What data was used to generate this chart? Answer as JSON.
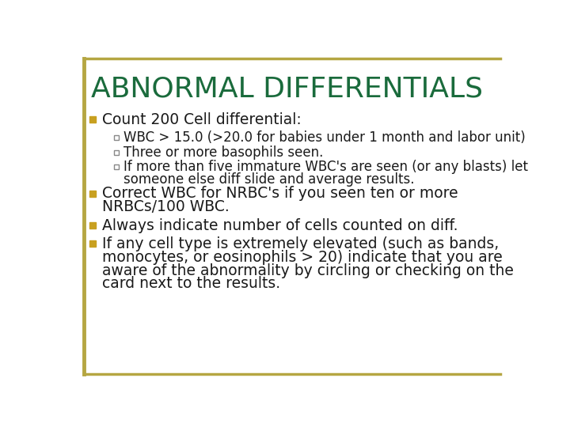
{
  "title": "ABNORMAL DIFFERENTIALS",
  "title_color": "#1a6b3c",
  "background_color": "#ffffff",
  "border_color": "#b5a642",
  "bullet1_color": "#c8a020",
  "bullet2_color": "#b8c8a0",
  "text_color": "#1a1a1a",
  "bullet_items": [
    {
      "level": 1,
      "text": "Count 200 Cell differential:"
    },
    {
      "level": 2,
      "text": "WBC > 15.0 (>20.0 for babies under 1 month and labor unit)"
    },
    {
      "level": 2,
      "text": "Three or more basophils seen."
    },
    {
      "level": 2,
      "text": "If more than five immature WBC's are seen (or any blasts) let\nsomeone else diff slide and average results."
    },
    {
      "level": 1,
      "text": "Correct WBC for NRBC's if you seen ten or more\nNRBCs/100 WBC."
    },
    {
      "level": 1,
      "text": "Always indicate number of cells counted on diff."
    },
    {
      "level": 1,
      "text": "If any cell type is extremely elevated (such as bands,\nmonocytes, or eosinophils > 20) indicate that you are\naware of the abnormality by circling or checking on the\ncard next to the results."
    }
  ]
}
